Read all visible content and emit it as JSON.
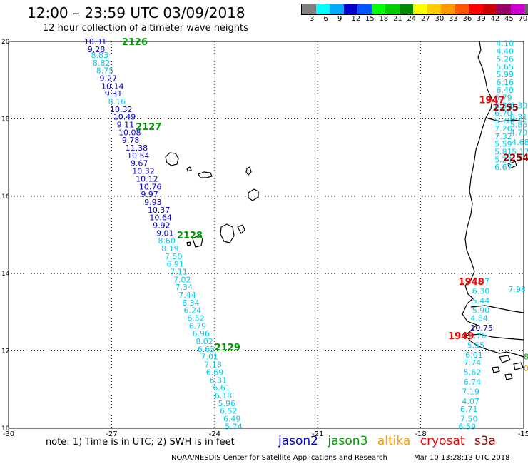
{
  "header": {
    "title": "12:00 – 23:59 UTC 03/09/2018",
    "subtitle": "12 hour collection of altimeter wave heights"
  },
  "colorbar": {
    "colors": [
      "#808080",
      "#00ffff",
      "#00aaff",
      "#0000cc",
      "#0055ff",
      "#00ff00",
      "#00cc00",
      "#008800",
      "#ffff00",
      "#ffcc00",
      "#ff9900",
      "#ff5500",
      "#ff0000",
      "#cc0000",
      "#990066",
      "#cc00cc",
      "#666666",
      "#000000"
    ],
    "labels": [
      "3",
      "6",
      "9",
      "12",
      "15",
      "18",
      "21",
      "24",
      "27",
      "30",
      "33",
      "36",
      "39",
      "42",
      "45",
      "70",
      "(ft)"
    ]
  },
  "axes": {
    "x_ticks": [
      "-30",
      "-27",
      "-24",
      "-21",
      "-18",
      "-15"
    ],
    "y_ticks": [
      "20",
      "18",
      "16",
      "14",
      "12",
      "10"
    ]
  },
  "colors": {
    "jason2": "#0000cc",
    "jason3": "#009900",
    "altika": "#ff9900",
    "cryosat": "#ff0000",
    "s3a": "#990000",
    "swh_light": "#00ccee",
    "swh_dark": "#0000cc"
  },
  "track_labels": [
    {
      "text": "2126",
      "lon": -26.7,
      "lat": 20.0,
      "color": "#009900"
    },
    {
      "text": "2127",
      "lon": -26.3,
      "lat": 17.8,
      "color": "#009900"
    },
    {
      "text": "2128",
      "lon": -25.1,
      "lat": 15.0,
      "color": "#009900"
    },
    {
      "text": "2129",
      "lon": -24.0,
      "lat": 12.1,
      "color": "#009900"
    },
    {
      "text": "2255",
      "lon": -15.9,
      "lat": 18.3,
      "color": "#990000"
    },
    {
      "text": "2254",
      "lon": -15.6,
      "lat": 17.0,
      "color": "#990000"
    },
    {
      "text": "1947",
      "lon": -16.3,
      "lat": 18.5,
      "color": "#ff0000"
    },
    {
      "text": "1948",
      "lon": -16.9,
      "lat": 13.8,
      "color": "#ff0000"
    },
    {
      "text": "1949",
      "lon": -17.2,
      "lat": 12.4,
      "color": "#ff0000"
    }
  ],
  "jason3_track": [
    {
      "v": "10.31",
      "lon": -27.8,
      "lat": 20.0,
      "c": "#0000cc"
    },
    {
      "v": "9.28",
      "lon": -27.7,
      "lat": 19.8,
      "c": "#0000cc"
    },
    {
      "v": "8.83",
      "lon": -27.6,
      "lat": 19.65,
      "c": "#00ccee"
    },
    {
      "v": "8.82",
      "lon": -27.55,
      "lat": 19.45,
      "c": "#00ccee"
    },
    {
      "v": "8.75",
      "lon": -27.45,
      "lat": 19.25,
      "c": "#00ccee"
    },
    {
      "v": "9.27",
      "lon": -27.35,
      "lat": 19.05,
      "c": "#0000cc"
    },
    {
      "v": "10.14",
      "lon": -27.3,
      "lat": 18.85,
      "c": "#0000cc"
    },
    {
      "v": "9.31",
      "lon": -27.2,
      "lat": 18.65,
      "c": "#0000cc"
    },
    {
      "v": "8.16",
      "lon": -27.1,
      "lat": 18.45,
      "c": "#00ccee"
    },
    {
      "v": "10.32",
      "lon": -27.05,
      "lat": 18.25,
      "c": "#0000cc"
    },
    {
      "v": "10.49",
      "lon": -26.95,
      "lat": 18.05,
      "c": "#0000cc"
    },
    {
      "v": "9.11",
      "lon": -26.85,
      "lat": 17.85,
      "c": "#0000cc"
    },
    {
      "v": "10.08",
      "lon": -26.8,
      "lat": 17.65,
      "c": "#0000cc"
    },
    {
      "v": "9.78",
      "lon": -26.7,
      "lat": 17.45,
      "c": "#0000cc"
    },
    {
      "v": "11.38",
      "lon": -26.6,
      "lat": 17.25,
      "c": "#0000cc"
    },
    {
      "v": "10.54",
      "lon": -26.55,
      "lat": 17.05,
      "c": "#0000cc"
    },
    {
      "v": "9.67",
      "lon": -26.45,
      "lat": 16.85,
      "c": "#0000cc"
    },
    {
      "v": "10.32",
      "lon": -26.4,
      "lat": 16.65,
      "c": "#0000cc"
    },
    {
      "v": "10.12",
      "lon": -26.3,
      "lat": 16.45,
      "c": "#0000cc"
    },
    {
      "v": "10.76",
      "lon": -26.2,
      "lat": 16.25,
      "c": "#0000cc"
    },
    {
      "v": "9.97",
      "lon": -26.15,
      "lat": 16.05,
      "c": "#0000cc"
    },
    {
      "v": "9.93",
      "lon": -26.05,
      "lat": 15.85,
      "c": "#0000cc"
    },
    {
      "v": "10.37",
      "lon": -25.95,
      "lat": 15.65,
      "c": "#0000cc"
    },
    {
      "v": "10.64",
      "lon": -25.9,
      "lat": 15.45,
      "c": "#0000cc"
    },
    {
      "v": "9.92",
      "lon": -25.8,
      "lat": 15.25,
      "c": "#0000cc"
    },
    {
      "v": "9.01",
      "lon": -25.7,
      "lat": 15.05,
      "c": "#0000cc"
    },
    {
      "v": "8.60",
      "lon": -25.65,
      "lat": 14.85,
      "c": "#00ccee"
    },
    {
      "v": "8.19",
      "lon": -25.55,
      "lat": 14.65,
      "c": "#00ccee"
    },
    {
      "v": "7.50",
      "lon": -25.45,
      "lat": 14.45,
      "c": "#00ccee"
    },
    {
      "v": "6.91",
      "lon": -25.4,
      "lat": 14.25,
      "c": "#00ccee"
    },
    {
      "v": "7.11",
      "lon": -25.3,
      "lat": 14.05,
      "c": "#00ccee"
    },
    {
      "v": "7.02",
      "lon": -25.2,
      "lat": 13.85,
      "c": "#00ccee"
    },
    {
      "v": "7.34",
      "lon": -25.15,
      "lat": 13.65,
      "c": "#00ccee"
    },
    {
      "v": "7.44",
      "lon": -25.05,
      "lat": 13.45,
      "c": "#00ccee"
    },
    {
      "v": "6.34",
      "lon": -24.95,
      "lat": 13.25,
      "c": "#00ccee"
    },
    {
      "v": "6.24",
      "lon": -24.9,
      "lat": 13.05,
      "c": "#00ccee"
    },
    {
      "v": "6.52",
      "lon": -24.8,
      "lat": 12.85,
      "c": "#00ccee"
    },
    {
      "v": "6.79",
      "lon": -24.75,
      "lat": 12.65,
      "c": "#00ccee"
    },
    {
      "v": "6.96",
      "lon": -24.65,
      "lat": 12.45,
      "c": "#00ccee"
    },
    {
      "v": "8.02",
      "lon": -24.55,
      "lat": 12.25,
      "c": "#00ccee"
    },
    {
      "v": "6.65",
      "lon": -24.5,
      "lat": 12.05,
      "c": "#00ccee"
    },
    {
      "v": "7.01",
      "lon": -24.4,
      "lat": 11.85,
      "c": "#00ccee"
    },
    {
      "v": "7.18",
      "lon": -24.3,
      "lat": 11.65,
      "c": "#00ccee"
    },
    {
      "v": "6.69",
      "lon": -24.25,
      "lat": 11.45,
      "c": "#00ccee"
    },
    {
      "v": "6.31",
      "lon": -24.15,
      "lat": 11.25,
      "c": "#00ccee"
    },
    {
      "v": "6.61",
      "lon": -24.05,
      "lat": 11.05,
      "c": "#00ccee"
    },
    {
      "v": "6.18",
      "lon": -24.0,
      "lat": 10.85,
      "c": "#00ccee"
    },
    {
      "v": "5.96",
      "lon": -23.9,
      "lat": 10.65,
      "c": "#00ccee"
    },
    {
      "v": "6.52",
      "lon": -23.85,
      "lat": 10.45,
      "c": "#00ccee"
    },
    {
      "v": "6.49",
      "lon": -23.75,
      "lat": 10.25,
      "c": "#00ccee"
    },
    {
      "v": "5.74",
      "lon": -23.7,
      "lat": 10.05,
      "c": "#00ccee"
    }
  ],
  "coastal_track_north": [
    {
      "v": "4.10",
      "lon": -15.8,
      "lat": 19.95,
      "c": "#00ccee"
    },
    {
      "v": "4.40",
      "lon": -15.8,
      "lat": 19.75,
      "c": "#00ccee"
    },
    {
      "v": "5.26",
      "lon": -15.8,
      "lat": 19.55,
      "c": "#00ccee"
    },
    {
      "v": "5.65",
      "lon": -15.8,
      "lat": 19.35,
      "c": "#00ccee"
    },
    {
      "v": "5.99",
      "lon": -15.8,
      "lat": 19.15,
      "c": "#00ccee"
    },
    {
      "v": "6.16",
      "lon": -15.8,
      "lat": 18.95,
      "c": "#00ccee"
    },
    {
      "v": "6.40",
      "lon": -15.8,
      "lat": 18.75,
      "c": "#00ccee"
    },
    {
      "v": "6.79",
      "lon": -15.85,
      "lat": 18.55,
      "c": "#00ccee"
    },
    {
      "v": "6.39",
      "lon": -15.85,
      "lat": 18.35,
      "c": "#00ccee"
    },
    {
      "v": "6.70",
      "lon": -15.85,
      "lat": 18.15,
      "c": "#00ccee"
    },
    {
      "v": "5.78",
      "lon": -15.85,
      "lat": 17.95,
      "c": "#00ccee"
    },
    {
      "v": "7.26",
      "lon": -15.85,
      "lat": 17.75,
      "c": "#00ccee"
    },
    {
      "v": "7.32",
      "lon": -15.85,
      "lat": 17.55,
      "c": "#00ccee"
    },
    {
      "v": "5.59",
      "lon": -15.85,
      "lat": 17.35,
      "c": "#00ccee"
    },
    {
      "v": "5.81",
      "lon": -15.85,
      "lat": 17.15,
      "c": "#00ccee"
    },
    {
      "v": "5.24",
      "lon": -15.85,
      "lat": 16.95,
      "c": "#00ccee"
    },
    {
      "v": "6.67",
      "lon": -15.85,
      "lat": 16.75,
      "c": "#00ccee"
    }
  ],
  "coastal_track_north_offset": [
    {
      "v": "6.30",
      "lon": -15.4,
      "lat": 18.35,
      "c": "#00ccee"
    },
    {
      "v": "6.31",
      "lon": -15.4,
      "lat": 18.05,
      "c": "#00ccee"
    },
    {
      "v": "5.85",
      "lon": -15.4,
      "lat": 17.85,
      "c": "#00ccee"
    },
    {
      "v": "4.70",
      "lon": -15.4,
      "lat": 17.65,
      "c": "#00ccee"
    },
    {
      "v": "4.68",
      "lon": -15.35,
      "lat": 17.4,
      "c": "#00ccee"
    },
    {
      "v": "5.17",
      "lon": -15.35,
      "lat": 17.15,
      "c": "#00ccee"
    }
  ],
  "coastal_track_south": [
    {
      "v": "4.97",
      "lon": -16.5,
      "lat": 13.8,
      "c": "#00ccee"
    },
    {
      "v": "6.30",
      "lon": -16.5,
      "lat": 13.55,
      "c": "#00ccee"
    },
    {
      "v": "5.44",
      "lon": -16.5,
      "lat": 13.3,
      "c": "#00ccee"
    },
    {
      "v": "5.90",
      "lon": -16.5,
      "lat": 13.05,
      "c": "#00ccee"
    },
    {
      "v": "4.84",
      "lon": -16.55,
      "lat": 12.85,
      "c": "#00ccee"
    },
    {
      "v": "10.75",
      "lon": -16.55,
      "lat": 12.6,
      "c": "#0000cc"
    },
    {
      "v": "6.76",
      "lon": -16.6,
      "lat": 12.4,
      "c": "#00ccee"
    },
    {
      "v": "5.55",
      "lon": -16.65,
      "lat": 12.15,
      "c": "#00ccee"
    },
    {
      "v": "6.01",
      "lon": -16.7,
      "lat": 11.9,
      "c": "#00ccee"
    },
    {
      "v": "7.74",
      "lon": -16.75,
      "lat": 11.7,
      "c": "#00ccee"
    },
    {
      "v": "5.62",
      "lon": -16.75,
      "lat": 11.45,
      "c": "#00ccee"
    },
    {
      "v": "6.74",
      "lon": -16.75,
      "lat": 11.2,
      "c": "#00ccee"
    },
    {
      "v": "7.19",
      "lon": -16.8,
      "lat": 10.95,
      "c": "#00ccee"
    },
    {
      "v": "4.07",
      "lon": -16.8,
      "lat": 10.7,
      "c": "#00ccee"
    },
    {
      "v": "6.71",
      "lon": -16.85,
      "lat": 10.5,
      "c": "#00ccee"
    },
    {
      "v": "7.50",
      "lon": -16.85,
      "lat": 10.25,
      "c": "#00ccee"
    },
    {
      "v": "6.59",
      "lon": -16.9,
      "lat": 10.05,
      "c": "#00ccee"
    }
  ],
  "extra_values": [
    {
      "v": "7.98",
      "lon": -15.45,
      "lat": 13.6,
      "c": "#00ccee"
    },
    {
      "v": "8",
      "lon": -15.0,
      "lat": 11.85,
      "c": "#009900"
    },
    {
      "v": "0",
      "lon": -15.0,
      "lat": 11.55,
      "c": "#ff9900"
    }
  ],
  "footer": {
    "note": "note: 1) Time is in UTC; 2) SWH is in feet",
    "legend": [
      {
        "label": "jason2",
        "color": "#0000cc"
      },
      {
        "label": "jason3",
        "color": "#009900"
      },
      {
        "label": "altika",
        "color": "#ff9900"
      },
      {
        "label": "cryosat",
        "color": "#ff0000"
      },
      {
        "label": "s3a",
        "color": "#990000"
      }
    ],
    "credit": "NOAA/NESDIS Center for Satellite Applications and Research",
    "timestamp": "Mar 10 13:28:13 UTC 2018"
  }
}
